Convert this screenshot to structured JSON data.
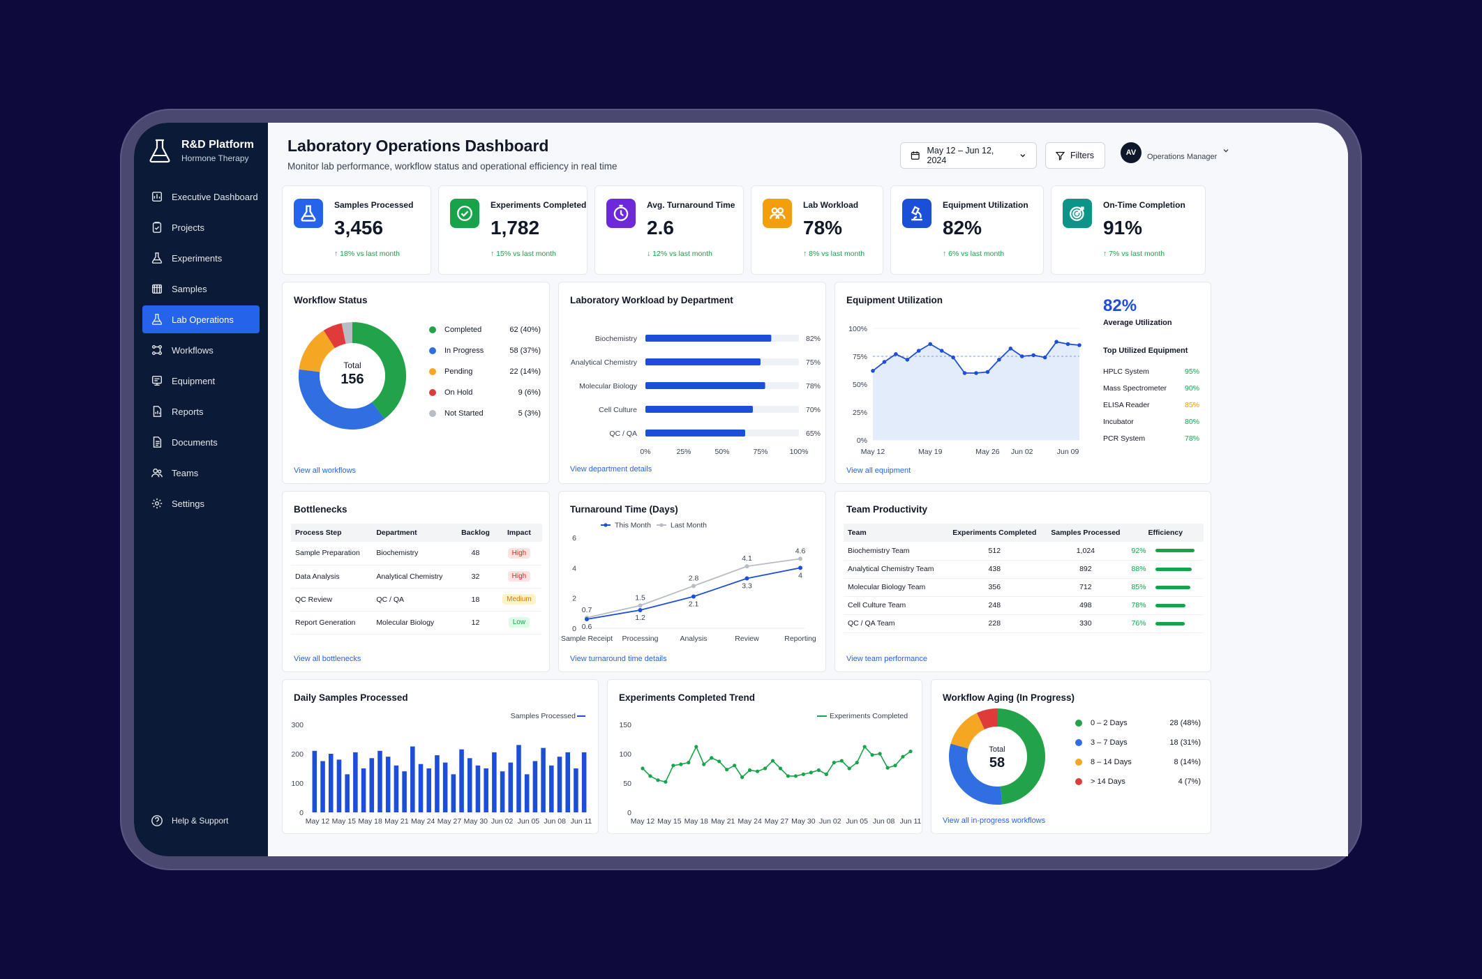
{
  "brand": {
    "name": "R&D Platform",
    "subtitle": "Hormone Therapy"
  },
  "sidebar": {
    "items": [
      {
        "label": "Executive Dashboard",
        "icon": "chart-icon"
      },
      {
        "label": "Projects",
        "icon": "clipboard-icon"
      },
      {
        "label": "Experiments",
        "icon": "flask-icon"
      },
      {
        "label": "Samples",
        "icon": "samples-icon"
      },
      {
        "label": "Lab Operations",
        "icon": "flask-icon",
        "active": true
      },
      {
        "label": "Workflows",
        "icon": "workflow-icon"
      },
      {
        "label": "Equipment",
        "icon": "equipment-icon"
      },
      {
        "label": "Reports",
        "icon": "report-icon"
      },
      {
        "label": "Documents",
        "icon": "document-icon"
      },
      {
        "label": "Teams",
        "icon": "teams-icon"
      },
      {
        "label": "Settings",
        "icon": "gear-icon"
      }
    ],
    "help": "Help & Support"
  },
  "header": {
    "title": "Laboratory Operations Dashboard",
    "subtitle": "Monitor lab performance, workflow status and operational efficiency in real time",
    "date_range": "May 12 – Jun 12, 2024",
    "filters": "Filters",
    "avatar": "AV",
    "role": "Operations Manager"
  },
  "kpis": [
    {
      "label": "Samples Processed",
      "value": "3,456",
      "trend": "18% vs last month",
      "dir": "up",
      "color": "#2563eb",
      "icon": "flask-icon"
    },
    {
      "label": "Experiments Completed",
      "value": "1,782",
      "trend": "15% vs last month",
      "dir": "up",
      "color": "#16a34a",
      "icon": "check-circle-icon"
    },
    {
      "label": "Avg. Turnaround Time",
      "value": "2.6",
      "trend": "12% vs last month",
      "dir": "down",
      "color": "#6d28d9",
      "icon": "clock-icon"
    },
    {
      "label": "Lab Workload",
      "value": "78%",
      "trend": "8% vs last month",
      "dir": "up",
      "color": "#f59e0b",
      "icon": "people-icon"
    },
    {
      "label": "Equipment Utilization",
      "value": "82%",
      "trend": "6% vs last month",
      "dir": "up",
      "color": "#1d4ed8",
      "icon": "microscope-icon"
    },
    {
      "label": "On-Time Completion",
      "value": "91%",
      "trend": "7% vs last month",
      "dir": "up",
      "color": "#0d9488",
      "icon": "target-icon"
    }
  ],
  "workflow_status": {
    "title": "Workflow Status",
    "total_label": "Total",
    "total": "156",
    "link": "View all workflows",
    "items": [
      {
        "label": "Completed",
        "value": "62 (40%)",
        "color": "#22a34a"
      },
      {
        "label": "In Progress",
        "value": "58 (37%)",
        "color": "#2f6fe0"
      },
      {
        "label": "Pending",
        "value": "22 (14%)",
        "color": "#f5a623"
      },
      {
        "label": "On Hold",
        "value": "9 (6%)",
        "color": "#e03b3b"
      },
      {
        "label": "Not Started",
        "value": "5 (3%)",
        "color": "#b7bcc5"
      }
    ]
  },
  "workload": {
    "title": "Laboratory Workload by Department",
    "link": "View department details"
  },
  "equipment": {
    "title": "Equipment Utilization",
    "big_value": "82%",
    "big_label": "Average Utilization",
    "top_title": "Top Utilized Equipment",
    "top": [
      {
        "name": "HPLC System",
        "value": "95%",
        "color": "#16a34a"
      },
      {
        "name": "Mass Spectrometer",
        "value": "90%",
        "color": "#16a34a"
      },
      {
        "name": "ELISA Reader",
        "value": "85%",
        "color": "#f59e0b"
      },
      {
        "name": "Incubator",
        "value": "80%",
        "color": "#16a34a"
      },
      {
        "name": "PCR System",
        "value": "78%",
        "color": "#16a34a"
      }
    ],
    "link": "View all equipment"
  },
  "bottlenecks": {
    "title": "Bottlenecks",
    "headers": [
      "Process Step",
      "Department",
      "Backlog",
      "Impact"
    ],
    "rows": [
      {
        "step": "Sample Preparation",
        "dept": "Biochemistry",
        "backlog": "48",
        "impact": "High",
        "level": "high"
      },
      {
        "step": "Data Analysis",
        "dept": "Analytical Chemistry",
        "backlog": "32",
        "impact": "High",
        "level": "high"
      },
      {
        "step": "QC Review",
        "dept": "QC / QA",
        "backlog": "18",
        "impact": "Medium",
        "level": "med"
      },
      {
        "step": "Report Generation",
        "dept": "Molecular Biology",
        "backlog": "12",
        "impact": "Low",
        "level": "low"
      }
    ],
    "link": "View all bottlenecks"
  },
  "turnaround": {
    "title": "Turnaround Time (Days)",
    "link": "View turnaround time details"
  },
  "team": {
    "title": "Team Productivity",
    "headers": [
      "Team",
      "Experiments Completed",
      "Samples Processed",
      "Efficiency"
    ],
    "rows": [
      {
        "team": "Biochemistry Team",
        "exp": "512",
        "samples": "1,024",
        "eff": "92%",
        "frac": 0.92
      },
      {
        "team": "Analytical Chemistry Team",
        "exp": "438",
        "samples": "892",
        "eff": "88%",
        "frac": 0.88
      },
      {
        "team": "Molecular Biology Team",
        "exp": "356",
        "samples": "712",
        "eff": "85%",
        "frac": 0.85
      },
      {
        "team": "Cell Culture Team",
        "exp": "248",
        "samples": "498",
        "eff": "78%",
        "frac": 0.78
      },
      {
        "team": "QC / QA Team",
        "exp": "228",
        "samples": "330",
        "eff": "76%",
        "frac": 0.76
      }
    ],
    "link": "View team performance"
  },
  "daily": {
    "title": "Daily Samples Processed"
  },
  "exp_trend": {
    "title": "Experiments Completed Trend"
  },
  "aging": {
    "title": "Workflow Aging (In Progress)",
    "total_label": "Total",
    "total": "58",
    "items": [
      {
        "label": "0 – 2 Days",
        "value": "28 (48%)",
        "color": "#22a34a"
      },
      {
        "label": "3 – 7 Days",
        "value": "18 (31%)",
        "color": "#2f6fe0"
      },
      {
        "label": "8 – 14 Days",
        "value": "8 (14%)",
        "color": "#f5a623"
      },
      {
        "label": "> 14 Days",
        "value": "4 (7%)",
        "color": "#e03b3b"
      }
    ],
    "link": "View all in-progress workflows"
  },
  "chart_data": [
    {
      "type": "pie",
      "title": "Workflow Status",
      "labels": [
        "Completed",
        "In Progress",
        "Pending",
        "On Hold",
        "Not Started"
      ],
      "values": [
        62,
        58,
        22,
        9,
        5
      ]
    },
    {
      "type": "bar",
      "title": "Laboratory Workload by Department",
      "categories": [
        "Biochemistry",
        "Analytical Chemistry",
        "Molecular Biology",
        "Cell Culture",
        "QC / QA"
      ],
      "values": [
        82,
        75,
        78,
        70,
        65
      ],
      "xticks": [
        "0%",
        "25%",
        "50%",
        "75%",
        "100%"
      ],
      "xlim": [
        0,
        100
      ]
    },
    {
      "type": "area",
      "title": "Equipment Utilization",
      "x": [
        "May 12",
        "",
        "",
        "",
        "",
        "May 19",
        "",
        "",
        "",
        "",
        "May 26",
        "",
        "",
        "Jun 02",
        "",
        "",
        "",
        "Jun 09",
        ""
      ],
      "xticks": [
        "May 12",
        "May 19",
        "May 26",
        "Jun 02",
        "Jun 09"
      ],
      "values": [
        62,
        70,
        77,
        72,
        80,
        86,
        80,
        74,
        60,
        60,
        61,
        72,
        82,
        75,
        76,
        74,
        88,
        86,
        85
      ],
      "yticks": [
        "0%",
        "25%",
        "50%",
        "75%",
        "100%"
      ],
      "ylim": [
        0,
        100
      ],
      "reference": 75
    },
    {
      "type": "line",
      "title": "Turnaround Time (Days)",
      "categories": [
        "Sample Receipt",
        "Processing",
        "Analysis",
        "Review",
        "Reporting"
      ],
      "series": [
        {
          "name": "This Month",
          "values": [
            0.6,
            1.2,
            2.1,
            3.3,
            4.0
          ],
          "color": "#1d4ed8"
        },
        {
          "name": "Last Month",
          "values": [
            0.7,
            1.5,
            2.8,
            4.1,
            4.6
          ],
          "color": "#b8bcc4"
        }
      ],
      "yticks": [
        "0",
        "2",
        "4",
        "6"
      ],
      "ylim": [
        0,
        6
      ]
    },
    {
      "type": "bar",
      "title": "Daily Samples Processed",
      "legend": "Samples Processed",
      "values": [
        210,
        175,
        200,
        180,
        130,
        205,
        150,
        185,
        210,
        190,
        160,
        140,
        225,
        165,
        150,
        195,
        170,
        130,
        215,
        185,
        160,
        150,
        205,
        140,
        170,
        230,
        130,
        175,
        220,
        160,
        190,
        205,
        150,
        205
      ],
      "xticks": [
        "May 12",
        "May 15",
        "May 18",
        "May 21",
        "May 24",
        "May 27",
        "May 30",
        "Jun 02",
        "Jun 05",
        "Jun 08",
        "Jun 11"
      ],
      "yticks": [
        "0",
        "100",
        "200",
        "300"
      ],
      "ylim": [
        0,
        300
      ]
    },
    {
      "type": "line",
      "title": "Experiments Completed Trend",
      "legend": "Experiments Completed",
      "values": [
        75,
        62,
        55,
        52,
        80,
        82,
        85,
        112,
        82,
        93,
        87,
        73,
        80,
        60,
        72,
        70,
        75,
        88,
        75,
        62,
        62,
        65,
        68,
        72,
        65,
        85,
        88,
        75,
        85,
        112,
        98,
        100,
        76,
        80,
        95,
        104
      ],
      "xticks": [
        "May 12",
        "May 15",
        "May 18",
        "May 21",
        "May 24",
        "May 27",
        "May 30",
        "Jun 02",
        "Jun 05",
        "Jun 08",
        "Jun 11"
      ],
      "yticks": [
        "0",
        "50",
        "100",
        "150"
      ],
      "ylim": [
        0,
        150
      ]
    },
    {
      "type": "pie",
      "title": "Workflow Aging (In Progress)",
      "labels": [
        "0 – 2 Days",
        "3 – 7 Days",
        "8 – 14 Days",
        "> 14 Days"
      ],
      "values": [
        28,
        18,
        8,
        4
      ]
    }
  ]
}
